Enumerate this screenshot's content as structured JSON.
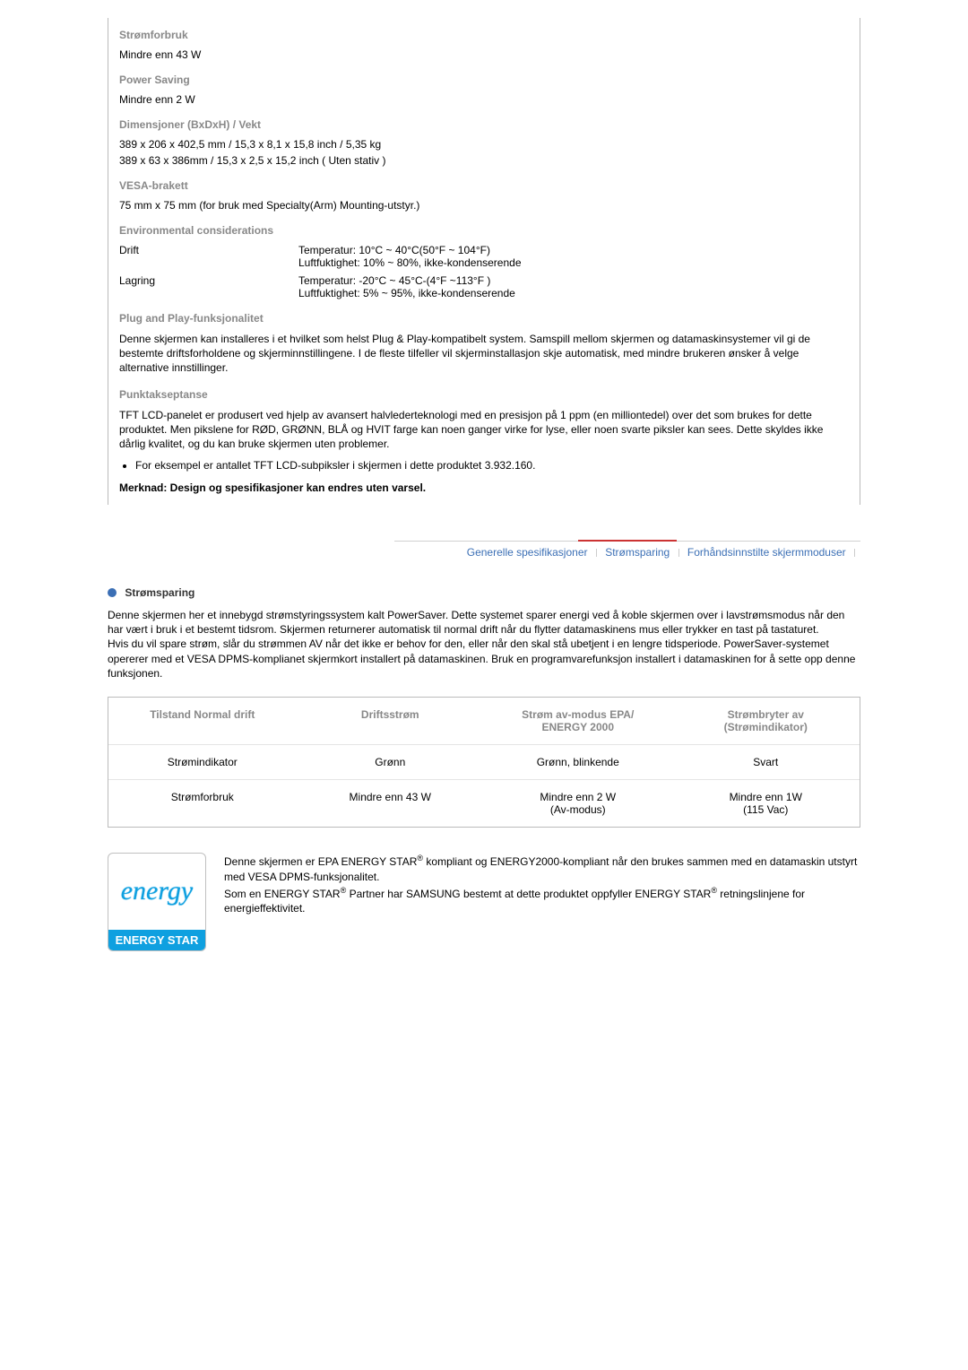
{
  "spec": {
    "power_consumption": {
      "label": "Strømforbruk",
      "value": "Mindre enn 43 W"
    },
    "power_saving": {
      "label": "Power Saving",
      "value": "Mindre enn 2 W"
    },
    "dimensions": {
      "label": "Dimensjoner (BxDxH) / Vekt",
      "line1": "389 x 206 x 402,5 mm / 15,3 x 8,1 x 15,8 inch / 5,35 kg",
      "line2": "389 x 63 x 386mm / 15,3 x 2,5 x 15,2 inch ( Uten stativ )"
    },
    "vesa": {
      "label": "VESA-brakett",
      "value": "75 mm x 75 mm (for bruk med Specialty(Arm) Mounting-utstyr.)"
    },
    "env": {
      "label": "Environmental considerations",
      "operate": {
        "name": "Drift",
        "temp": "Temperatur: 10°C ~ 40°C(50°F ~ 104°F)",
        "hum": "Luftfuktighet: 10% ~ 80%, ikke-kondenserende"
      },
      "storage": {
        "name": "Lagring",
        "temp": "Temperatur: -20°C ~ 45°C-(4°F ~113°F )",
        "hum": "Luftfuktighet: 5% ~ 95%, ikke-kondenserende"
      }
    },
    "plugplay": {
      "label": "Plug and Play-funksjonalitet",
      "text": "Denne skjermen kan installeres i et hvilket som helst Plug & Play-kompatibelt system. Samspill mellom skjermen og datamaskinsystemer vil gi de bestemte driftsforholdene og skjerminnstillingene. I de fleste tilfeller vil skjerminstallasjon skje automatisk, med mindre brukeren ønsker å velge alternative innstillinger."
    },
    "dot": {
      "label": "Punktakseptanse",
      "text": "TFT LCD-panelet er produsert ved hjelp av avansert halvlederteknologi med en presisjon på 1 ppm (en milliontedel) over det som brukes for dette produktet. Men pikslene for RØD, GRØNN, BLÅ og HVIT farge kan noen ganger virke for lyse, eller noen svarte piksler kan sees. Dette skyldes ikke dårlig kvalitet, og du kan bruke skjermen uten problemer.",
      "bullet": "For eksempel er antallet TFT LCD-subpiksler i skjermen i dette produktet 3.932.160."
    },
    "note": "Merknad: Design og spesifikasjoner kan endres uten varsel."
  },
  "tabs": {
    "general": "Generelle spesifikasjoner",
    "powersaver": "Strømsparing",
    "preset": "Forhåndsinnstilte skjermmoduser"
  },
  "ps": {
    "title": "Strømsparing",
    "text": "Denne skjermen her et innebygd strømstyringssystem kalt PowerSaver. Dette systemet sparer energi ved å koble skjermen over i lavstrømsmodus når den har vært i bruk i et bestemt tidsrom. Skjermen returnerer automatisk til normal drift når du flytter datamaskinens mus eller trykker en tast på tastaturet.\nHvis du vil spare strøm, slår du strømmen AV når det ikke er behov for den, eller når den skal stå ubetjent i en lengre tidsperiode. PowerSaver-systemet opererer med et VESA DPMS-komplianet skjermkort installert på datamaskinen. Bruk en programvarefunksjon installert i datamaskinen for å sette opp denne funksjonen."
  },
  "table": {
    "h1": "Tilstand Normal drift",
    "h2": "Driftsstrøm",
    "h3": "Strøm av-modus EPA/\nENERGY 2000",
    "h4": "Strømbryter av\n(Strømindikator)",
    "r1c1": "Strømindikator",
    "r1c2": "Grønn",
    "r1c3": "Grønn, blinkende",
    "r1c4": "Svart",
    "r2c1": "Strømforbruk",
    "r2c2": "Mindre enn 43 W",
    "r2c3": "Mindre enn 2 W\n(Av-modus)",
    "r2c4": "Mindre enn 1W\n(115 Vac)"
  },
  "footer": {
    "logo_script": "energy",
    "logo_bar": "ENERGY STAR",
    "p1a": "Denne skjermen er EPA ENERGY STAR",
    "p1b": " kompliant og ENERGY2000-kompliant når den brukes sammen med en datamaskin utstyrt med VESA DPMS-funksjonalitet.",
    "p2a": "Som en ENERGY STAR",
    "p2b": " Partner har SAMSUNG bestemt at dette produktet oppfyller ENERGY STAR",
    "p2c": " retningslinjene for energieffektivitet."
  },
  "colors": {
    "muted": "#888888",
    "link": "#3b6fb5",
    "accent": "#cc3333",
    "logo_blue": "#0fa0e0"
  }
}
